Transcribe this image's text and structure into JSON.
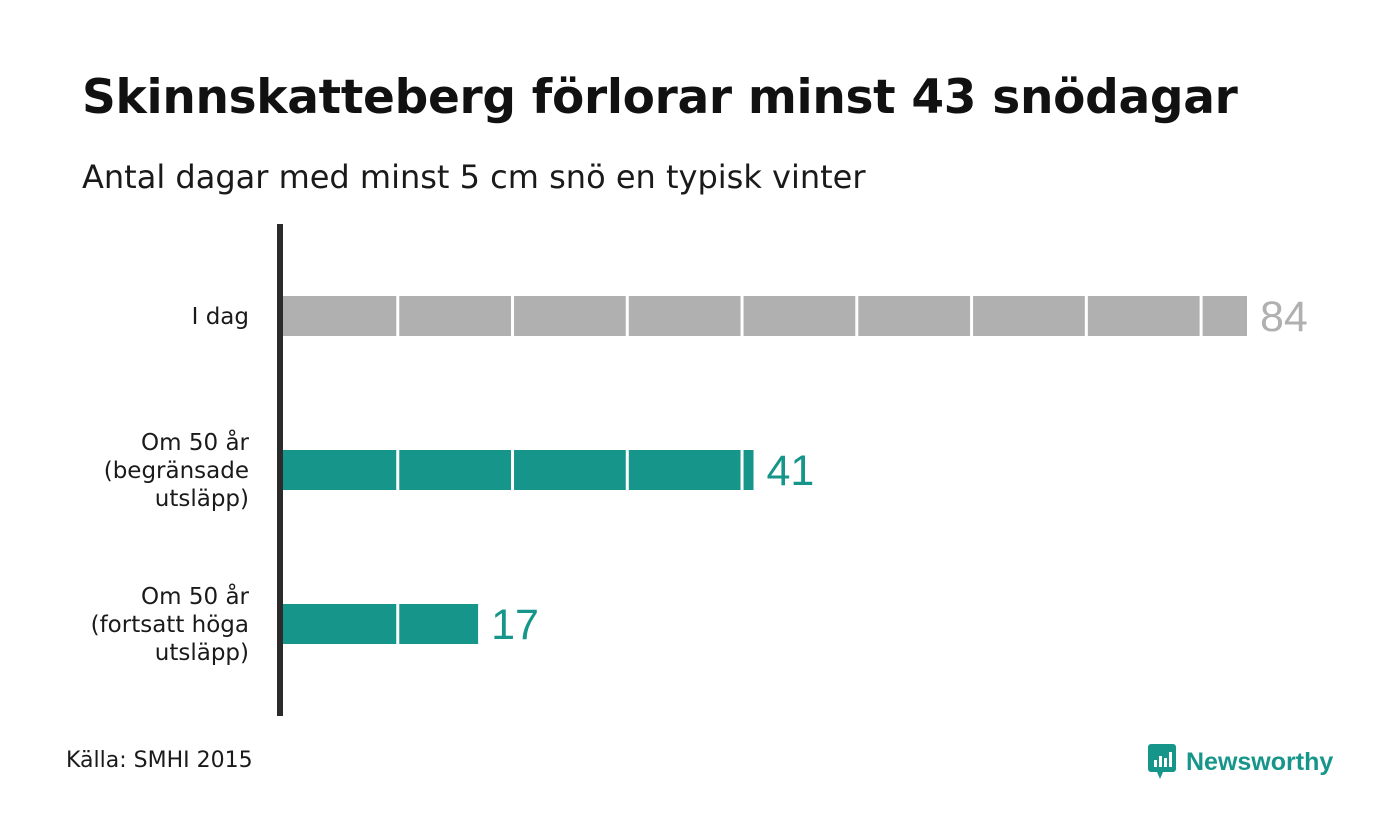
{
  "title": "Skinnskatteberg förlorar minst 43 snödagar",
  "subtitle": "Antal dagar med minst 5 cm snö en typisk vinter",
  "source": "Källa: SMHI 2015",
  "brand": {
    "name": "Newsworthy",
    "color": "#16968a",
    "icon": "bar-chart-speech-bubble-icon"
  },
  "colors": {
    "today": "#b0b0b0",
    "future": "#16968a",
    "axis": "#2b2b2b",
    "segment_divider": "#ffffff"
  },
  "chart_data": {
    "type": "bar",
    "orientation": "horizontal",
    "title": "Skinnskatteberg förlorar minst 43 snödagar",
    "subtitle": "Antal dagar med minst 5 cm snö en typisk vinter",
    "xlim": [
      0,
      84
    ],
    "segment_size": 10,
    "grid": false,
    "categories": [
      {
        "lines": [
          "I dag"
        ],
        "value": 84,
        "color": "#b0b0b0"
      },
      {
        "lines": [
          "Om 50 år",
          "(begränsade",
          "utsläpp)"
        ],
        "value": 41,
        "color": "#16968a"
      },
      {
        "lines": [
          "Om 50 år",
          "(fortsatt höga",
          "utsläpp)"
        ],
        "value": 17,
        "color": "#16968a"
      }
    ]
  }
}
